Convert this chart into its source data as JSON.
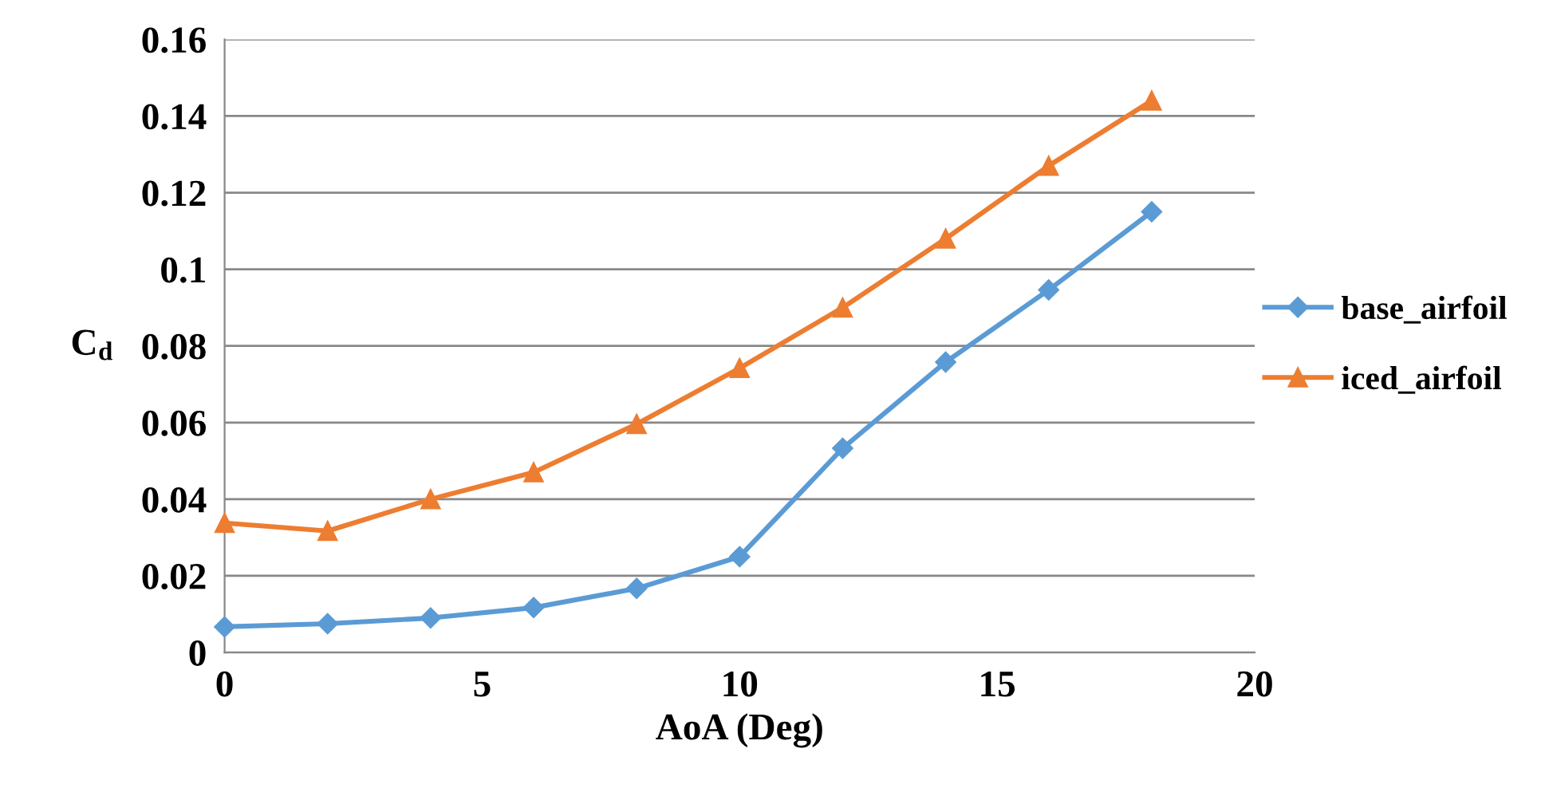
{
  "chart_data": {
    "type": "line",
    "xlabel": "AoA (Deg)",
    "ylabel": "C$_{d}$",
    "xlim": [
      0,
      20
    ],
    "xticks": [
      0,
      5,
      10,
      15,
      20
    ],
    "ylim": [
      0,
      0.16
    ],
    "yticks": [
      0,
      0.02,
      0.04,
      0.06,
      0.08,
      0.1,
      0.12,
      0.14,
      0.16
    ],
    "grid": "y",
    "legend": "right",
    "line_style": "solid",
    "series": [
      {
        "name": "base_airfoil",
        "color": "#5b9bd5",
        "marker": "diamond",
        "x": [
          0,
          2,
          4,
          6,
          8,
          10,
          12,
          14,
          16,
          18
        ],
        "values": [
          0.0067,
          0.0075,
          0.009,
          0.0117,
          0.0167,
          0.025,
          0.0533,
          0.0758,
          0.0946,
          0.115
        ]
      },
      {
        "name": "iced_airfoil",
        "color": "#ed7d31",
        "marker": "triangle",
        "x": [
          0,
          2,
          4,
          6,
          8,
          10,
          12,
          14,
          16,
          18
        ],
        "values": [
          0.0338,
          0.0317,
          0.04,
          0.047,
          0.0596,
          0.0742,
          0.09,
          0.108,
          0.127,
          0.144
        ]
      }
    ]
  }
}
